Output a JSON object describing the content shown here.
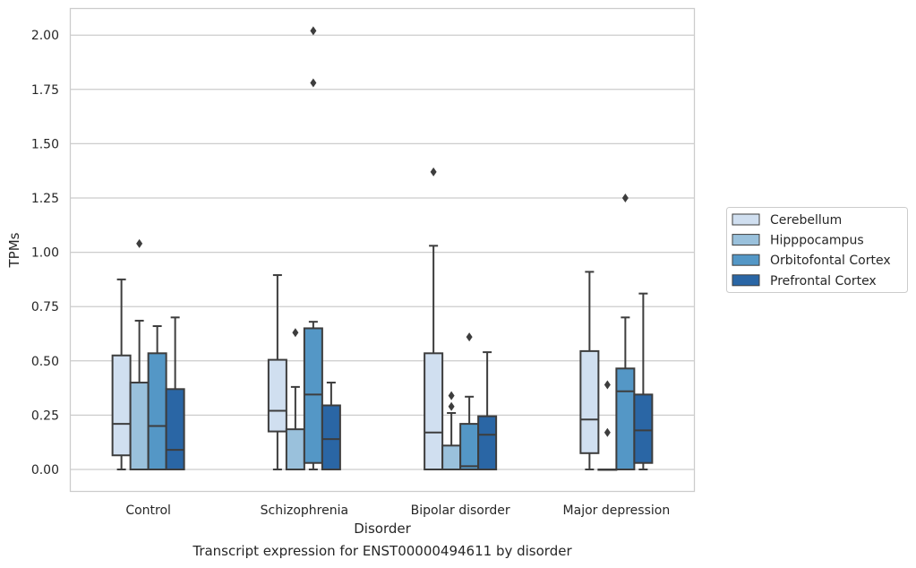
{
  "caption": "Transcript expression for ENST00000494611 by disorder",
  "chart_data": {
    "type": "boxplot",
    "xlabel": "Disorder",
    "ylabel": "TPMs",
    "ylim": [
      -0.1,
      2.12
    ],
    "yticks": [
      0.0,
      0.25,
      0.5,
      0.75,
      1.0,
      1.25,
      1.5,
      1.75,
      2.0
    ],
    "ytick_labels": [
      "0.00",
      "0.25",
      "0.50",
      "0.75",
      "1.00",
      "1.25",
      "1.50",
      "1.75",
      "2.00"
    ],
    "grid": "horizontal",
    "legend_position": "right",
    "categories": [
      "Control",
      "Schizophrenia",
      "Bipolar disorder",
      "Major depression"
    ],
    "series": [
      {
        "name": "Cerebellum",
        "color": "#d0dff0",
        "boxes": [
          {
            "q1": 0.065,
            "median": 0.21,
            "q3": 0.525,
            "whislo": 0.0,
            "whishi": 0.875,
            "fliers": []
          },
          {
            "q1": 0.175,
            "median": 0.27,
            "q3": 0.505,
            "whislo": 0.0,
            "whishi": 0.895,
            "fliers": []
          },
          {
            "q1": 0.0,
            "median": 0.17,
            "q3": 0.535,
            "whislo": 0.0,
            "whishi": 1.03,
            "fliers": [
              1.37
            ]
          },
          {
            "q1": 0.075,
            "median": 0.23,
            "q3": 0.545,
            "whislo": 0.0,
            "whishi": 0.91,
            "fliers": []
          }
        ]
      },
      {
        "name": "Hipppocampus",
        "color": "#9ac1dc",
        "boxes": [
          {
            "q1": 0.0,
            "median": 0.0,
            "q3": 0.4,
            "whislo": 0.0,
            "whishi": 0.685,
            "fliers": [
              1.04
            ]
          },
          {
            "q1": 0.0,
            "median": 0.0,
            "q3": 0.185,
            "whislo": 0.0,
            "whishi": 0.38,
            "fliers": [
              0.63
            ]
          },
          {
            "q1": 0.0,
            "median": 0.0,
            "q3": 0.11,
            "whislo": 0.0,
            "whishi": 0.26,
            "fliers": [
              0.29,
              0.34
            ]
          },
          {
            "q1": 0.0,
            "median": 0.0,
            "q3": 0.0,
            "whislo": 0.0,
            "whishi": 0.0,
            "fliers": [
              0.17,
              0.39
            ]
          }
        ]
      },
      {
        "name": "Orbitofontal Cortex",
        "color": "#5497c6",
        "boxes": [
          {
            "q1": 0.0,
            "median": 0.2,
            "q3": 0.535,
            "whislo": 0.0,
            "whishi": 0.66,
            "fliers": []
          },
          {
            "q1": 0.03,
            "median": 0.345,
            "q3": 0.65,
            "whislo": 0.0,
            "whishi": 0.68,
            "fliers": [
              1.78,
              2.02
            ]
          },
          {
            "q1": 0.0,
            "median": 0.015,
            "q3": 0.21,
            "whislo": 0.0,
            "whishi": 0.335,
            "fliers": [
              0.61
            ]
          },
          {
            "q1": 0.0,
            "median": 0.36,
            "q3": 0.465,
            "whislo": 0.0,
            "whishi": 0.7,
            "fliers": [
              1.25
            ]
          }
        ]
      },
      {
        "name": "Prefrontal Cortex",
        "color": "#2a66a5",
        "boxes": [
          {
            "q1": 0.0,
            "median": 0.09,
            "q3": 0.37,
            "whislo": 0.0,
            "whishi": 0.7,
            "fliers": []
          },
          {
            "q1": 0.0,
            "median": 0.14,
            "q3": 0.295,
            "whislo": 0.0,
            "whishi": 0.4,
            "fliers": []
          },
          {
            "q1": 0.0,
            "median": 0.16,
            "q3": 0.245,
            "whislo": 0.0,
            "whishi": 0.54,
            "fliers": []
          },
          {
            "q1": 0.03,
            "median": 0.18,
            "q3": 0.345,
            "whislo": 0.0,
            "whishi": 0.81,
            "fliers": []
          }
        ]
      }
    ]
  }
}
